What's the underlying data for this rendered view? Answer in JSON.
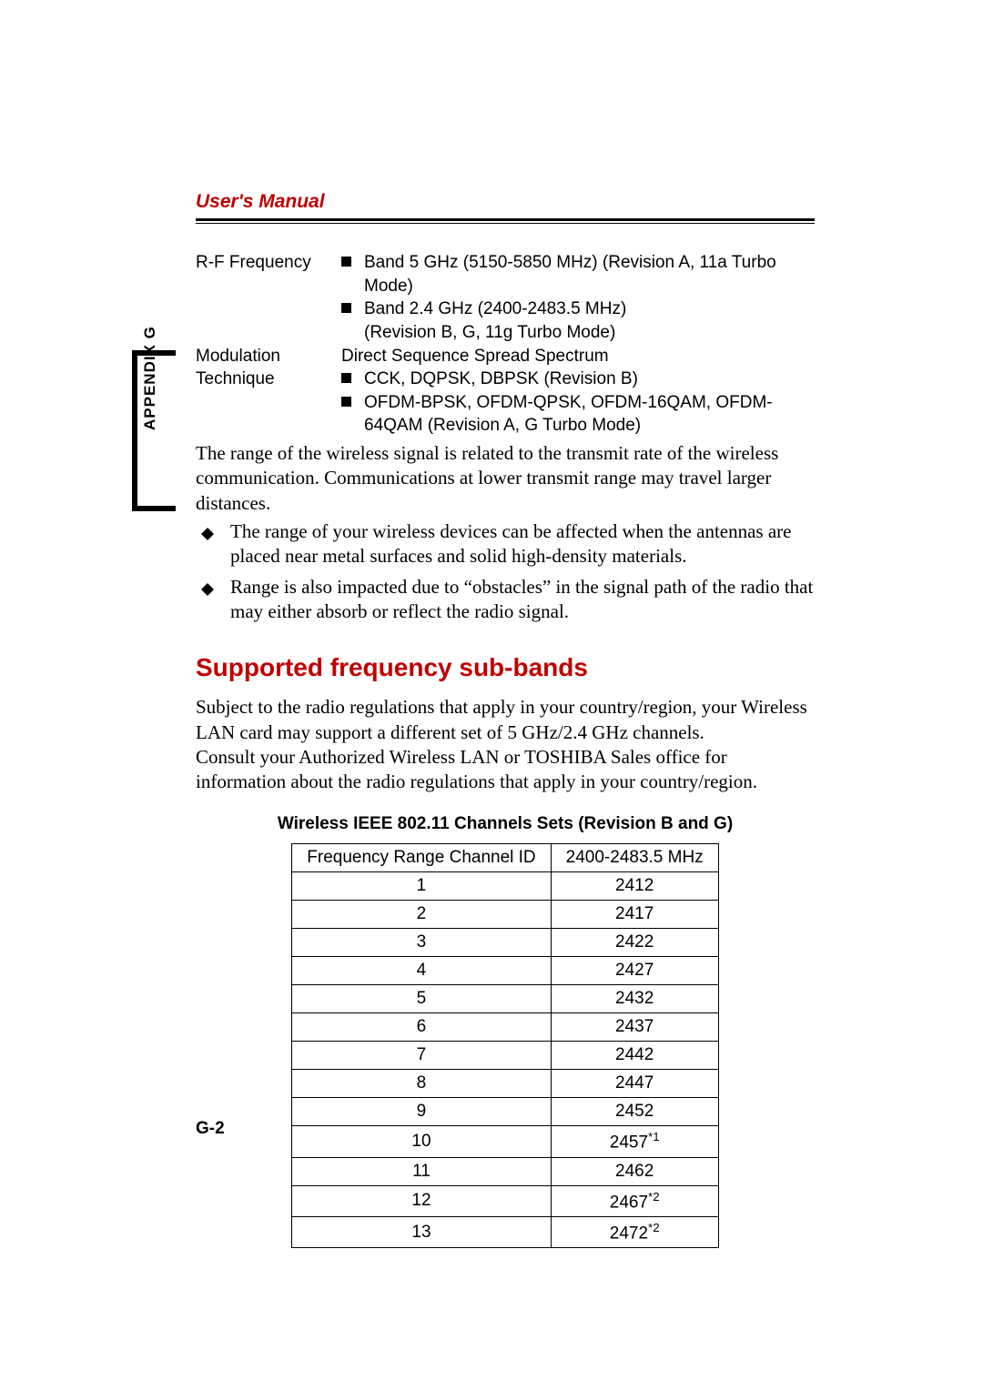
{
  "header": {
    "title": "User's Manual"
  },
  "sidetab": {
    "label": "APPENDIX G"
  },
  "specs": {
    "rf": {
      "label": "R-F Frequency",
      "b1": "Band 5 GHz (5150-5850 MHz) (Revision A, 11a Turbo Mode)",
      "b2a": "Band 2.4 GHz (2400-2483.5 MHz)",
      "b2b": "(Revision B, G, 11g Turbo Mode)"
    },
    "mod": {
      "label": "Modulation Technique",
      "intro": "Direct Sequence Spread Spectrum",
      "b1": "CCK, DQPSK, DBPSK (Revision B)",
      "b2": "OFDM-BPSK, OFDM-QPSK, OFDM-16QAM, OFDM-64QAM (Revision A, G Turbo Mode)"
    }
  },
  "para1": "The range of the wireless signal is related to the transmit rate of the wireless communication. Communications at lower transmit range may travel larger distances.",
  "dlist": {
    "i1": "The range of your wireless devices can be affected when the antennas are placed near metal surfaces and solid high-density materials.",
    "i2": "Range is also impacted due to “obstacles” in the signal path of the radio that may either absorb or reflect the radio signal."
  },
  "section": {
    "title": "Supported frequency sub-bands",
    "p": "Subject to the radio regulations that apply in your country/region, your Wireless LAN card may support a different set of 5 GHz/2.4 GHz channels.\nConsult your Authorized Wireless LAN or TOSHIBA Sales office for information about the radio regulations that apply in your country/region."
  },
  "table": {
    "title": "Wireless IEEE 802.11 Channels Sets (Revision B and G)",
    "h1": "Frequency Range Channel ID",
    "h2": "2400-2483.5 MHz",
    "rows": [
      {
        "id": "1",
        "f": "2412",
        "s": ""
      },
      {
        "id": "2",
        "f": "2417",
        "s": ""
      },
      {
        "id": "3",
        "f": "2422",
        "s": ""
      },
      {
        "id": "4",
        "f": "2427",
        "s": ""
      },
      {
        "id": "5",
        "f": "2432",
        "s": ""
      },
      {
        "id": "6",
        "f": "2437",
        "s": ""
      },
      {
        "id": "7",
        "f": "2442",
        "s": ""
      },
      {
        "id": "8",
        "f": "2447",
        "s": ""
      },
      {
        "id": "9",
        "f": "2452",
        "s": ""
      },
      {
        "id": "10",
        "f": "2457",
        "s": "*1"
      },
      {
        "id": "11",
        "f": "2462",
        "s": ""
      },
      {
        "id": "12",
        "f": "2467",
        "s": "*2"
      },
      {
        "id": "13",
        "f": "2472",
        "s": "*2"
      }
    ]
  },
  "pagenum": "G-2"
}
